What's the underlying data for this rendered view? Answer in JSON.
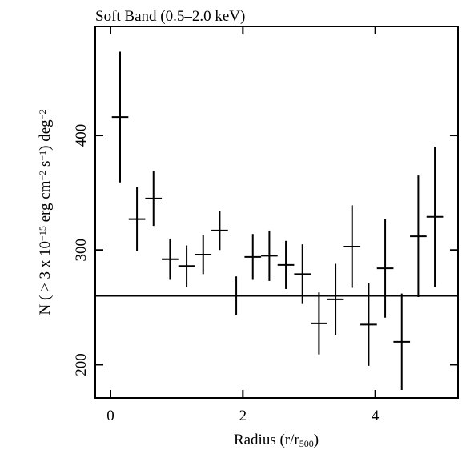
{
  "chart_data": {
    "type": "errorbar",
    "title": "Soft Band (0.5–2.0 keV)",
    "xlabel_parts": [
      "Radius (r/r",
      "500",
      ")"
    ],
    "ylabel_parts": [
      "N ( > 3 x 10",
      "−15",
      " erg cm",
      "−2",
      " s",
      "−1",
      ") deg",
      "−2"
    ],
    "x": [
      0.145,
      0.4,
      0.65,
      0.9,
      1.15,
      1.4,
      1.65,
      1.9,
      2.15,
      2.4,
      2.65,
      2.9,
      3.15,
      3.4,
      3.65,
      3.9,
      4.15,
      4.4,
      4.65,
      4.9
    ],
    "values": [
      416,
      327,
      345,
      292,
      286,
      296,
      317,
      260,
      294,
      295,
      287,
      279,
      236,
      257,
      303,
      235,
      284,
      220,
      312,
      329
    ],
    "yerr": [
      57,
      28,
      24,
      18,
      18,
      17,
      17,
      17,
      20,
      22,
      21,
      26,
      27,
      31,
      36,
      36,
      43,
      42,
      53,
      61
    ],
    "xerr": 0.125,
    "color": "#000000",
    "reference_line": 260,
    "xlim": [
      -0.23,
      5.25
    ],
    "xticks": [
      0,
      2,
      4
    ],
    "ylim": [
      171,
      495
    ],
    "yticks": [
      200,
      300,
      400
    ]
  }
}
